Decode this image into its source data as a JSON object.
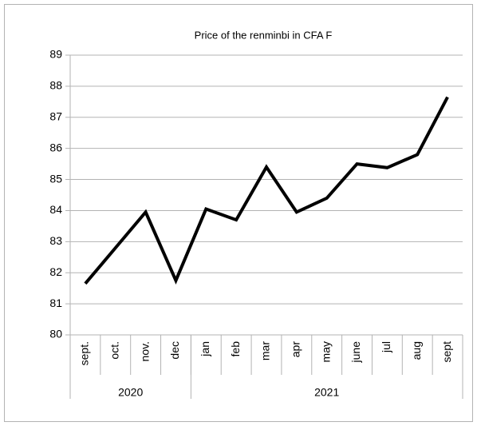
{
  "chart_data": {
    "type": "line",
    "title": "Price of the renminbi in CFA F",
    "categories": [
      "sept.",
      "oct.",
      "nov.",
      "dec",
      "jan",
      "feb",
      "mar",
      "apr",
      "may",
      "june",
      "jul",
      "aug",
      "sept"
    ],
    "groups": [
      {
        "label": "2020",
        "span": 4
      },
      {
        "label": "2021",
        "span": 9
      }
    ],
    "series": [
      {
        "name": "Price",
        "color": "#000000",
        "values": [
          81.65,
          82.8,
          83.95,
          81.75,
          84.05,
          83.7,
          85.4,
          83.95,
          84.4,
          85.5,
          85.38,
          85.8,
          87.65
        ]
      }
    ],
    "ylim": [
      80,
      89
    ],
    "yticks": [
      80,
      81,
      82,
      83,
      84,
      85,
      86,
      87,
      88,
      89
    ],
    "grid": true
  }
}
